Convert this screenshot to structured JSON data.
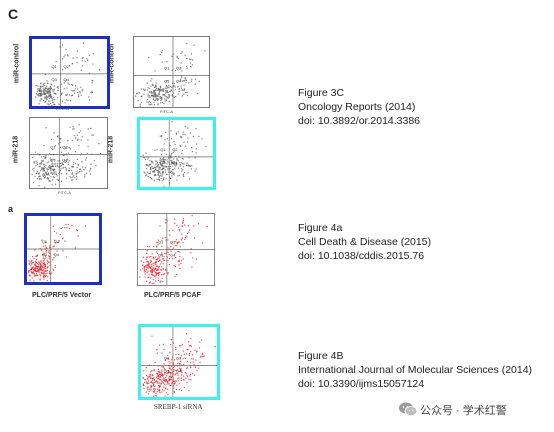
{
  "panel_letters": {
    "c": "C",
    "a": "a"
  },
  "group1": {
    "row1_label": "miR-control",
    "row2_label": "miR-218",
    "x_axis": "FITC-A",
    "y_axis": "PI-A",
    "quadrants": [
      "Q1",
      "Q2",
      "Q3",
      "Q4"
    ]
  },
  "group2": {
    "label_left": "PLC/PRF/5 Vector",
    "label_right": "PLC/PRF/5 PCAF",
    "y_axis": "PI-A",
    "quadrants": [
      "Q1",
      "Q2",
      "Q3",
      "Q4"
    ]
  },
  "group3": {
    "label": "SREBP-1 siRNA",
    "y_axis": "PI-A",
    "quadrants": [
      "Q1",
      "Q2",
      "Q3",
      "Q4"
    ]
  },
  "references": [
    {
      "figure": "Figure 3C",
      "journal": "Oncology Reports (2014)",
      "doi": "doi: 10.3892/or.2014.3386"
    },
    {
      "figure": "Figure 4a",
      "journal": "Cell Death & Disease (2015)",
      "doi": "doi: 10.1038/cddis.2015.76"
    },
    {
      "figure": "Figure 4B",
      "journal": "International Journal of Molecular Sciences (2014)",
      "doi": "doi: 10.3390/ijms15057124"
    }
  ],
  "watermark": {
    "icon": "wechat-icon",
    "text": "公众号 · 学术红警"
  },
  "colors": {
    "highlight_blue": "#1f2fbf",
    "highlight_cyan": "#3ff0ec",
    "dot_gray": "#555555",
    "dot_red": "#e0161b",
    "gate_line": "#666666"
  }
}
